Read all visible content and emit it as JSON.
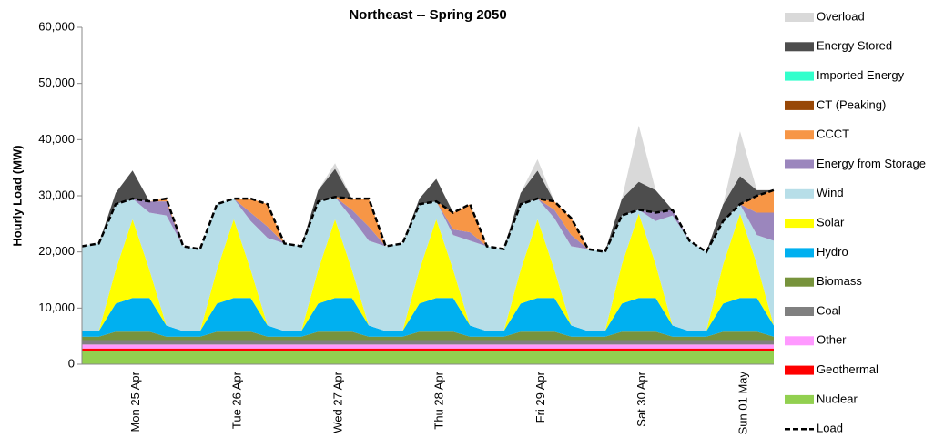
{
  "chart_data": {
    "type": "stacked-area",
    "title": "Northeast -- Spring 2050",
    "y_label": "Hourly Load (MW)",
    "categories": [
      null,
      null,
      null,
      "Mon 25 Apr",
      null,
      null,
      null,
      null,
      null,
      "Tue 26 Apr",
      null,
      null,
      null,
      null,
      null,
      "Wed 27 Apr",
      null,
      null,
      null,
      null,
      null,
      "Thu 28 Apr",
      null,
      null,
      null,
      null,
      null,
      "Fri 29 Apr",
      null,
      null,
      null,
      null,
      null,
      "Sat 30 Apr",
      null,
      null,
      null,
      null,
      null,
      "Sun 01 May",
      null,
      null
    ],
    "ylim": [
      0,
      60000
    ],
    "yticks": [
      0,
      {
        "value": 10000,
        "label": "10,000"
      },
      {
        "value": 20000,
        "label": "20,000"
      },
      {
        "value": 30000,
        "label": "30,000"
      },
      {
        "value": 40000,
        "label": "40,000"
      },
      {
        "value": 50000,
        "label": "50,000"
      },
      {
        "value": 60000,
        "label": "60,000"
      }
    ],
    "grid": false,
    "legend": "right",
    "series": [
      {
        "name": "Nuclear",
        "color": "#92d050",
        "values": [
          2400,
          2400,
          2400,
          2400,
          2400,
          2400,
          2400,
          2400,
          2400,
          2400,
          2400,
          2400,
          2400,
          2400,
          2400,
          2400,
          2400,
          2400,
          2400,
          2400,
          2400,
          2400,
          2400,
          2400,
          2400,
          2400,
          2400,
          2400,
          2400,
          2400,
          2400,
          2400,
          2400,
          2400,
          2400,
          2400,
          2400,
          2400,
          2400,
          2400,
          2400,
          2400
        ]
      },
      {
        "name": "Geothermal",
        "color": "#ff0000",
        "values": [
          400,
          400,
          400,
          400,
          400,
          400,
          400,
          400,
          400,
          400,
          400,
          400,
          400,
          400,
          400,
          400,
          400,
          400,
          400,
          400,
          400,
          400,
          400,
          400,
          400,
          400,
          400,
          400,
          400,
          400,
          400,
          400,
          400,
          400,
          400,
          400,
          400,
          400,
          400,
          400,
          400,
          400
        ]
      },
      {
        "name": "Other",
        "color": "#ff99ff",
        "values": [
          700,
          700,
          700,
          700,
          700,
          700,
          700,
          700,
          700,
          700,
          700,
          700,
          700,
          700,
          700,
          700,
          700,
          700,
          700,
          700,
          700,
          700,
          700,
          700,
          700,
          700,
          700,
          700,
          700,
          700,
          700,
          700,
          700,
          700,
          700,
          700,
          700,
          700,
          700,
          700,
          700,
          700
        ]
      },
      {
        "name": "Coal",
        "color": "#808080",
        "values": [
          800,
          800,
          800,
          800,
          800,
          800,
          800,
          800,
          800,
          800,
          800,
          800,
          800,
          800,
          800,
          800,
          800,
          800,
          800,
          800,
          800,
          800,
          800,
          800,
          800,
          800,
          800,
          800,
          800,
          800,
          800,
          800,
          800,
          800,
          800,
          800,
          800,
          800,
          800,
          800,
          800,
          800
        ]
      },
      {
        "name": "Biomass",
        "color": "#77933c",
        "values": [
          600,
          600,
          1500,
          1500,
          1500,
          600,
          600,
          600,
          1500,
          1500,
          1500,
          600,
          600,
          600,
          1500,
          1500,
          1500,
          600,
          600,
          600,
          1500,
          1500,
          1500,
          600,
          600,
          600,
          1500,
          1500,
          1500,
          600,
          600,
          600,
          1500,
          1500,
          1500,
          600,
          600,
          600,
          1500,
          1500,
          1500,
          600
        ]
      },
      {
        "name": "Hydro",
        "color": "#00b0f0",
        "values": [
          1000,
          1000,
          5000,
          6000,
          6000,
          2000,
          1000,
          1000,
          5000,
          6000,
          6000,
          2000,
          1000,
          1000,
          5000,
          6000,
          6000,
          2000,
          1000,
          1000,
          5000,
          6000,
          6000,
          2000,
          1000,
          1000,
          5000,
          6000,
          6000,
          2000,
          1000,
          1000,
          5000,
          6000,
          6000,
          2000,
          1000,
          1000,
          5000,
          6000,
          6000,
          2000
        ]
      },
      {
        "name": "Solar",
        "color": "#ffff00",
        "values": [
          0,
          0,
          6000,
          14000,
          5000,
          0,
          0,
          0,
          6000,
          14000,
          5000,
          0,
          0,
          0,
          6000,
          14000,
          5000,
          0,
          0,
          0,
          6000,
          14000,
          5000,
          0,
          0,
          0,
          6000,
          14000,
          5000,
          0,
          0,
          0,
          7000,
          15000,
          6000,
          0,
          0,
          0,
          7000,
          15000,
          6000,
          0
        ]
      },
      {
        "name": "Wind",
        "color": "#b7dee8",
        "values": [
          15100,
          15600,
          11700,
          3700,
          10200,
          19600,
          15100,
          14600,
          11700,
          3700,
          8700,
          15600,
          15600,
          15100,
          12200,
          4000,
          9200,
          15100,
          15100,
          15600,
          11700,
          3200,
          6200,
          15100,
          15100,
          14600,
          11700,
          3700,
          9200,
          14100,
          14600,
          14100,
          8700,
          700,
          7700,
          19600,
          16100,
          14100,
          7700,
          1700,
          5200,
          15100
        ]
      },
      {
        "name": "Energy from Storage",
        "color": "#9b86bd",
        "values": [
          0,
          0,
          0,
          0,
          2000,
          2500,
          0,
          0,
          0,
          0,
          1500,
          2000,
          0,
          0,
          0,
          0,
          1500,
          2500,
          0,
          0,
          0,
          0,
          1000,
          1500,
          0,
          0,
          0,
          0,
          1500,
          2000,
          0,
          0,
          0,
          0,
          1500,
          1000,
          0,
          0,
          0,
          0,
          4000,
          5000
        ]
      },
      {
        "name": "CCCT",
        "color": "#f79646",
        "values": [
          0,
          0,
          0,
          0,
          0,
          500,
          0,
          0,
          0,
          0,
          2500,
          4000,
          0,
          0,
          0,
          0,
          2000,
          5000,
          0,
          0,
          0,
          0,
          3000,
          5000,
          0,
          0,
          0,
          0,
          1500,
          3000,
          0,
          0,
          0,
          0,
          0,
          0,
          0,
          0,
          0,
          0,
          3000,
          4000
        ]
      },
      {
        "name": "CT (Peaking)",
        "color": "#984807",
        "values": [
          0,
          0,
          0,
          0,
          0,
          0,
          0,
          0,
          0,
          0,
          0,
          0,
          0,
          0,
          0,
          0,
          0,
          0,
          0,
          0,
          0,
          0,
          0,
          0,
          0,
          0,
          0,
          0,
          0,
          0,
          0,
          0,
          0,
          0,
          0,
          0,
          0,
          0,
          0,
          0,
          0,
          0
        ]
      },
      {
        "name": "Imported Energy",
        "color": "#33ffcc",
        "values": [
          0,
          0,
          0,
          0,
          0,
          0,
          0,
          0,
          0,
          0,
          0,
          0,
          0,
          0,
          0,
          0,
          0,
          0,
          0,
          0,
          0,
          0,
          0,
          0,
          0,
          0,
          0,
          0,
          0,
          0,
          0,
          0,
          0,
          0,
          0,
          0,
          0,
          0,
          0,
          0,
          0,
          0
        ]
      },
      {
        "name": "Energy Stored",
        "color": "#4d4d4d",
        "values": [
          0,
          0,
          2000,
          5000,
          0,
          0,
          0,
          0,
          0,
          0,
          0,
          0,
          0,
          0,
          2000,
          5000,
          0,
          0,
          0,
          0,
          1000,
          4000,
          0,
          0,
          0,
          0,
          2000,
          5000,
          0,
          0,
          0,
          0,
          3000,
          5000,
          4000,
          0,
          0,
          0,
          3000,
          5000,
          1000,
          0
        ]
      },
      {
        "name": "Overload",
        "color": "#d9d9d9",
        "values": [
          0,
          0,
          0,
          0,
          0,
          0,
          0,
          0,
          0,
          0,
          0,
          0,
          0,
          0,
          0,
          1000,
          0,
          0,
          0,
          0,
          0,
          0,
          0,
          0,
          0,
          0,
          0,
          2000,
          0,
          0,
          0,
          0,
          0,
          10000,
          0,
          0,
          0,
          0,
          0,
          8000,
          0,
          0
        ]
      },
      {
        "name": "Load",
        "type": "line",
        "dash": true,
        "color": "#000000",
        "values": [
          21000,
          21500,
          28500,
          29500,
          29000,
          29500,
          21000,
          20500,
          28500,
          29500,
          29500,
          28500,
          21500,
          21000,
          29000,
          29800,
          29500,
          29500,
          21000,
          21500,
          28500,
          29000,
          27000,
          28500,
          21000,
          20500,
          28500,
          29500,
          29000,
          26000,
          20500,
          20000,
          26500,
          27500,
          27000,
          27500,
          22000,
          20000,
          25500,
          28500,
          30000,
          31000
        ]
      }
    ]
  }
}
